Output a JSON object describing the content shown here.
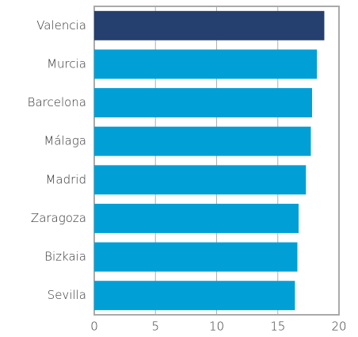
{
  "chart_data": {
    "type": "barh",
    "categories": [
      "Valencia",
      "Murcia",
      "Barcelona",
      "Málaga",
      "Madrid",
      "Zaragoza",
      "Bizkaia",
      "Sevilla"
    ],
    "values": [
      18.8,
      18.2,
      17.8,
      17.7,
      17.3,
      16.7,
      16.6,
      16.4
    ],
    "colors": [
      "#253f6e",
      "#00a0d6",
      "#00a0d6",
      "#00a0d6",
      "#00a0d6",
      "#00a0d6",
      "#00a0d6",
      "#00a0d6"
    ],
    "xlim": [
      0,
      20
    ],
    "xticks": [
      0,
      5,
      10,
      15,
      20
    ],
    "grid": true
  }
}
